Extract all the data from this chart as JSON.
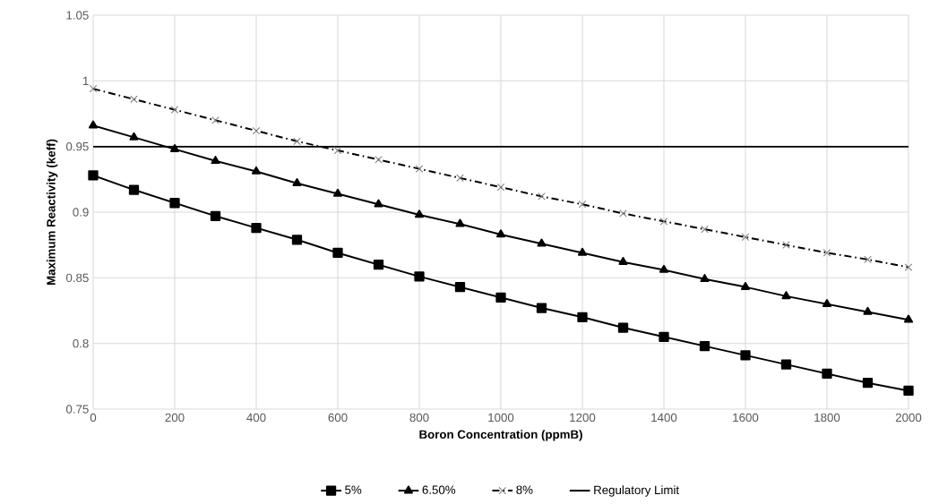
{
  "chart_data": {
    "type": "line",
    "xlabel": "Boron Concentration (ppmB)",
    "ylabel": "Maximum Reactivity (keff)",
    "x": [
      0,
      100,
      200,
      300,
      400,
      500,
      600,
      700,
      800,
      900,
      1000,
      1100,
      1200,
      1300,
      1400,
      1500,
      1600,
      1700,
      1800,
      1900,
      2000
    ],
    "series": [
      {
        "name": "5%",
        "color": "#000000",
        "marker": "square",
        "line_style": "solid",
        "values": [
          0.928,
          0.917,
          0.907,
          0.897,
          0.888,
          0.879,
          0.869,
          0.86,
          0.851,
          0.843,
          0.835,
          0.827,
          0.82,
          0.812,
          0.805,
          0.798,
          0.791,
          0.784,
          0.777,
          0.77,
          0.764
        ]
      },
      {
        "name": "6.50%",
        "color": "#000000",
        "marker": "triangle",
        "line_style": "solid",
        "values": [
          0.966,
          0.957,
          0.948,
          0.939,
          0.931,
          0.922,
          0.914,
          0.906,
          0.898,
          0.891,
          0.883,
          0.876,
          0.869,
          0.862,
          0.856,
          0.849,
          0.843,
          0.836,
          0.83,
          0.824,
          0.818
        ]
      },
      {
        "name": "8%",
        "color": "#000000",
        "marker": "cross",
        "line_style": "dashdot",
        "values": [
          0.994,
          0.986,
          0.978,
          0.97,
          0.962,
          0.954,
          0.947,
          0.94,
          0.933,
          0.926,
          0.919,
          0.912,
          0.906,
          0.899,
          0.893,
          0.887,
          0.881,
          0.875,
          0.869,
          0.864,
          0.858
        ]
      },
      {
        "name": "Regulatory Limit",
        "color": "#000000",
        "marker": "none",
        "line_style": "solid",
        "x": [
          0,
          2000
        ],
        "values": [
          0.95,
          0.95
        ]
      }
    ],
    "xlim": [
      0,
      2000
    ],
    "xticks": [
      0,
      200,
      400,
      600,
      800,
      1000,
      1200,
      1400,
      1600,
      1800,
      2000
    ],
    "ylim": [
      0.75,
      1.05
    ],
    "yticks": [
      0.75,
      0.8,
      0.85,
      0.9,
      0.95,
      1,
      1.05
    ],
    "grid": true,
    "legend": "bottom"
  }
}
